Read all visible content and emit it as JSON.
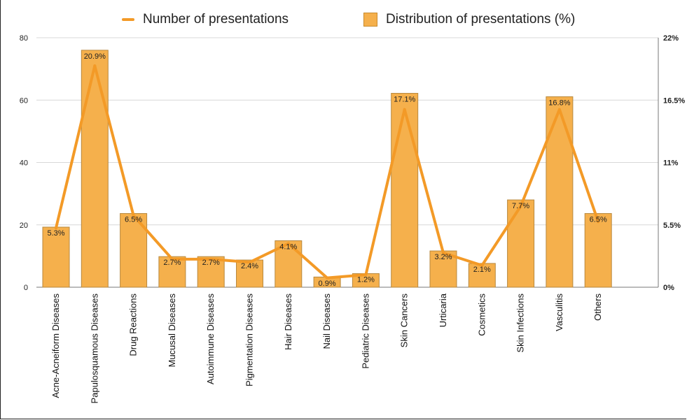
{
  "chart_data": {
    "type": "bar",
    "categories": [
      "Acne-Acneiform Diseases",
      "Papulosquamous Diseases",
      "Drug Reactions",
      "Mucusal Diseases",
      "Autoimmune Diseases",
      "Pigmentation Diseases",
      "Hair Diseases",
      "Nail Diseases",
      "Pediatric Diseases",
      "Skin Cancers",
      "Urticaria",
      "Cosmetics",
      "Skin Infections",
      "Vasculitis",
      "Others"
    ],
    "series": [
      {
        "name": "Number of presentations",
        "type": "line",
        "axis": "left",
        "color": "#f39a27",
        "values": [
          19,
          71,
          23,
          9,
          9,
          8,
          14,
          3,
          4,
          57,
          11,
          7,
          26,
          57,
          21
        ]
      },
      {
        "name": "Distribution of presentations (%)",
        "type": "bar",
        "axis": "right",
        "color": "#f5b04c",
        "values": [
          5.3,
          20.9,
          6.5,
          2.7,
          2.7,
          2.4,
          4.1,
          0.9,
          1.2,
          17.1,
          3.2,
          2.1,
          7.7,
          16.8,
          6.5
        ],
        "labels": [
          "5.3%",
          "20.9%",
          "6.5%",
          "2.7%",
          "2.7%",
          "2.4%",
          "4.1%",
          "0.9%",
          "1.2%",
          "17.1%",
          "3.2%",
          "2.1%",
          "7.7%",
          "16.8%",
          "6.5%"
        ]
      }
    ],
    "y_left": {
      "ylim": [
        0,
        80
      ],
      "ticks": [
        "0",
        "20",
        "40",
        "60",
        "80"
      ]
    },
    "y_right": {
      "ylim": [
        0,
        22
      ],
      "ticks": [
        "0%",
        "5.5%",
        "11%",
        "16.5%",
        "22%"
      ]
    },
    "grid": true,
    "legend_position": "top"
  }
}
